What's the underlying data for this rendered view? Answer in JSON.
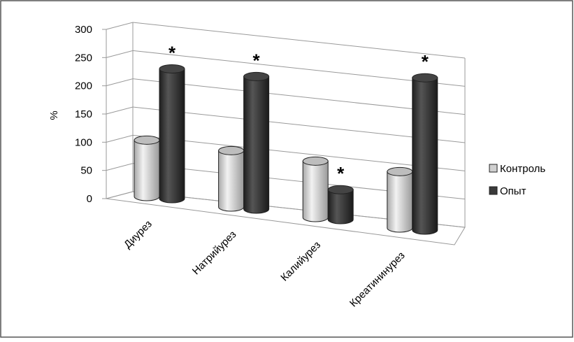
{
  "chart_data": {
    "type": "bar3d",
    "y_label": "%",
    "categories": [
      "Диурез",
      "Натрийурез",
      "Калийурез",
      "Креатининурез"
    ],
    "series": [
      {
        "name": "Контроль",
        "color": "#d0d0d0",
        "values": [
          100,
          100,
          100,
          100
        ]
      },
      {
        "name": "Опыт",
        "color": "#3a3a3a",
        "values": [
          230,
          235,
          53,
          270
        ]
      }
    ],
    "annotations": [
      "*",
      "*",
      "*",
      "*"
    ],
    "ylim": [
      0,
      300
    ],
    "yticks": [
      0,
      50,
      100,
      150,
      200,
      250,
      300
    ],
    "grid": true,
    "legend": "right"
  }
}
